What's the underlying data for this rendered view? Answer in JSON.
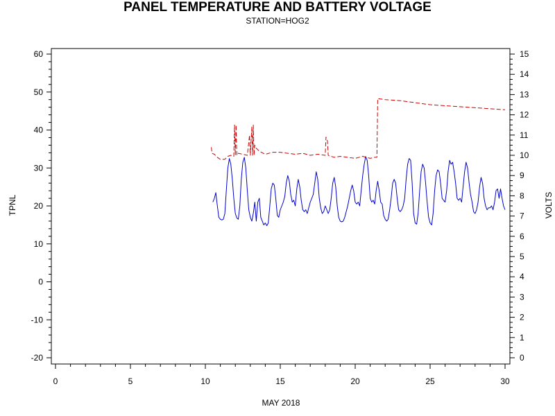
{
  "chart_data": {
    "type": "line",
    "title": "PANEL TEMPERATURE AND BATTERY VOLTAGE",
    "subtitle": "STATION=HOG2",
    "xlabel": "MAY 2018",
    "ylabel_left": "TPNL",
    "ylabel_right": "VOLTS",
    "xlim": [
      0,
      30
    ],
    "x_ticks": [
      0,
      5,
      10,
      15,
      20,
      25,
      30
    ],
    "ylim_left": [
      -20,
      60
    ],
    "y_ticks_left": [
      -20,
      -10,
      0,
      10,
      20,
      30,
      40,
      50,
      60
    ],
    "ylim_right": [
      0,
      15
    ],
    "y_ticks_right": [
      0,
      1,
      2,
      3,
      4,
      5,
      6,
      7,
      8,
      9,
      10,
      11,
      12,
      13,
      14,
      15
    ],
    "series": [
      {
        "axis": "left",
        "color": "#0000cc",
        "style": "solid",
        "points": [
          [
            10.5,
            21
          ],
          [
            10.6,
            22
          ],
          [
            10.7,
            23.5
          ],
          [
            10.8,
            20
          ],
          [
            10.9,
            17
          ],
          [
            11.0,
            16.5
          ],
          [
            11.1,
            16.3
          ],
          [
            11.2,
            16.5
          ],
          [
            11.3,
            18
          ],
          [
            11.4,
            24
          ],
          [
            11.5,
            30
          ],
          [
            11.6,
            32.5
          ],
          [
            11.7,
            31
          ],
          [
            11.8,
            27
          ],
          [
            11.9,
            22
          ],
          [
            12.0,
            18
          ],
          [
            12.1,
            16.8
          ],
          [
            12.2,
            16.5
          ],
          [
            12.3,
            20
          ],
          [
            12.4,
            27
          ],
          [
            12.5,
            31.5
          ],
          [
            12.6,
            32.8
          ],
          [
            12.7,
            30
          ],
          [
            12.8,
            24
          ],
          [
            12.9,
            19
          ],
          [
            13.0,
            17
          ],
          [
            13.1,
            16
          ],
          [
            13.2,
            18
          ],
          [
            13.3,
            21
          ],
          [
            13.4,
            16
          ],
          [
            13.5,
            21
          ],
          [
            13.6,
            22
          ],
          [
            13.7,
            17
          ],
          [
            13.8,
            16
          ],
          [
            13.9,
            15
          ],
          [
            14.0,
            15.5
          ],
          [
            14.1,
            14.8
          ],
          [
            14.2,
            15.5
          ],
          [
            14.3,
            20
          ],
          [
            14.4,
            24.5
          ],
          [
            14.5,
            26
          ],
          [
            14.6,
            25.5
          ],
          [
            14.7,
            22
          ],
          [
            14.8,
            17.5
          ],
          [
            14.9,
            17
          ],
          [
            15.0,
            19
          ],
          [
            15.1,
            20
          ],
          [
            15.2,
            21
          ],
          [
            15.3,
            22.5
          ],
          [
            15.4,
            26
          ],
          [
            15.5,
            28
          ],
          [
            15.6,
            26.5
          ],
          [
            15.7,
            23
          ],
          [
            15.8,
            21
          ],
          [
            15.9,
            21.5
          ],
          [
            16.0,
            20
          ],
          [
            16.1,
            24.5
          ],
          [
            16.2,
            27
          ],
          [
            16.3,
            25
          ],
          [
            16.4,
            21.5
          ],
          [
            16.5,
            19
          ],
          [
            16.6,
            18.5
          ],
          [
            16.7,
            19
          ],
          [
            16.8,
            18
          ],
          [
            16.9,
            19.5
          ],
          [
            17.0,
            21
          ],
          [
            17.1,
            22
          ],
          [
            17.2,
            23
          ],
          [
            17.3,
            26
          ],
          [
            17.4,
            29
          ],
          [
            17.5,
            27
          ],
          [
            17.6,
            22
          ],
          [
            17.7,
            19.5
          ],
          [
            17.8,
            18
          ],
          [
            17.9,
            18.5
          ],
          [
            18.0,
            20
          ],
          [
            18.1,
            19
          ],
          [
            18.2,
            18
          ],
          [
            18.3,
            19
          ],
          [
            18.4,
            22
          ],
          [
            18.5,
            26
          ],
          [
            18.6,
            27.5
          ],
          [
            18.7,
            25
          ],
          [
            18.8,
            20
          ],
          [
            18.9,
            17
          ],
          [
            19.0,
            16
          ],
          [
            19.1,
            15.8
          ],
          [
            19.2,
            16
          ],
          [
            19.3,
            17
          ],
          [
            19.5,
            20
          ],
          [
            19.6,
            22
          ],
          [
            19.7,
            24
          ],
          [
            19.8,
            25.5
          ],
          [
            19.9,
            24
          ],
          [
            20.0,
            21
          ],
          [
            20.1,
            20.5
          ],
          [
            20.2,
            21
          ],
          [
            20.3,
            20
          ],
          [
            20.4,
            24
          ],
          [
            20.5,
            28
          ],
          [
            20.6,
            31
          ],
          [
            20.7,
            33
          ],
          [
            20.8,
            32
          ],
          [
            20.9,
            28
          ],
          [
            21.0,
            22
          ],
          [
            21.1,
            21
          ],
          [
            21.2,
            21.5
          ],
          [
            21.3,
            20.5
          ],
          [
            21.4,
            24
          ],
          [
            21.5,
            26.5
          ],
          [
            21.6,
            24
          ],
          [
            21.7,
            21
          ],
          [
            21.8,
            20.5
          ],
          [
            21.9,
            17.5
          ],
          [
            22.0,
            16.5
          ],
          [
            22.1,
            16
          ],
          [
            22.2,
            16.5
          ],
          [
            22.3,
            19
          ],
          [
            22.4,
            22
          ],
          [
            22.5,
            26
          ],
          [
            22.6,
            27
          ],
          [
            22.7,
            26
          ],
          [
            22.8,
            22
          ],
          [
            22.9,
            19
          ],
          [
            23.0,
            18.5
          ],
          [
            23.1,
            19
          ],
          [
            23.2,
            20
          ],
          [
            23.3,
            22
          ],
          [
            23.4,
            27
          ],
          [
            23.5,
            31
          ],
          [
            23.6,
            32.5
          ],
          [
            23.7,
            32
          ],
          [
            23.8,
            26
          ],
          [
            23.9,
            18
          ],
          [
            24.0,
            15.5
          ],
          [
            24.1,
            15.2
          ],
          [
            24.2,
            18
          ],
          [
            24.3,
            24
          ],
          [
            24.4,
            29
          ],
          [
            24.5,
            31
          ],
          [
            24.6,
            30
          ],
          [
            24.7,
            26
          ],
          [
            24.8,
            21
          ],
          [
            24.9,
            17
          ],
          [
            25.0,
            15.5
          ],
          [
            25.1,
            15
          ],
          [
            25.2,
            18
          ],
          [
            25.3,
            24
          ],
          [
            25.4,
            28
          ],
          [
            25.5,
            29.5
          ],
          [
            25.6,
            29
          ],
          [
            25.7,
            26
          ],
          [
            25.8,
            22
          ],
          [
            25.9,
            21.5
          ],
          [
            26.0,
            21
          ],
          [
            26.1,
            24
          ],
          [
            26.2,
            29
          ],
          [
            26.3,
            32
          ],
          [
            26.4,
            31
          ],
          [
            26.5,
            31.5
          ],
          [
            26.6,
            29
          ],
          [
            26.7,
            26
          ],
          [
            26.8,
            22
          ],
          [
            26.9,
            21.5
          ],
          [
            27.0,
            22
          ],
          [
            27.1,
            21
          ],
          [
            27.2,
            25
          ],
          [
            27.3,
            29
          ],
          [
            27.4,
            31.5
          ],
          [
            27.5,
            30
          ],
          [
            27.6,
            26
          ],
          [
            27.7,
            23
          ],
          [
            27.8,
            21
          ],
          [
            27.9,
            18.5
          ],
          [
            28.0,
            18
          ],
          [
            28.1,
            19
          ],
          [
            28.2,
            21
          ],
          [
            28.3,
            25
          ],
          [
            28.4,
            27.5
          ],
          [
            28.5,
            26
          ],
          [
            28.6,
            22
          ],
          [
            28.7,
            20
          ],
          [
            28.8,
            19
          ],
          [
            28.9,
            19.5
          ],
          [
            29.0,
            19.5
          ],
          [
            29.1,
            20
          ],
          [
            29.2,
            19
          ],
          [
            29.3,
            21
          ],
          [
            29.4,
            24
          ],
          [
            29.5,
            24.5
          ],
          [
            29.6,
            22
          ],
          [
            29.7,
            24.5
          ],
          [
            29.8,
            22
          ],
          [
            29.9,
            20
          ],
          [
            30.0,
            19
          ]
        ]
      },
      {
        "axis": "right",
        "color": "#cc0000",
        "style": "dashed",
        "points": [
          [
            10.4,
            10.4
          ],
          [
            10.45,
            10.1
          ],
          [
            10.6,
            10.05
          ],
          [
            10.8,
            9.9
          ],
          [
            11.0,
            9.8
          ],
          [
            11.3,
            9.8
          ],
          [
            11.5,
            9.95
          ],
          [
            11.7,
            10.0
          ],
          [
            11.9,
            9.95
          ],
          [
            11.95,
            11.5
          ],
          [
            12.0,
            10.0
          ],
          [
            12.05,
            11.5
          ],
          [
            12.1,
            10.0
          ],
          [
            12.2,
            10.1
          ],
          [
            12.5,
            10.05
          ],
          [
            12.8,
            10.0
          ],
          [
            12.95,
            11.0
          ],
          [
            13.0,
            10.0
          ],
          [
            13.1,
            11.4
          ],
          [
            13.15,
            10.0
          ],
          [
            13.2,
            11.5
          ],
          [
            13.25,
            10.0
          ],
          [
            13.3,
            10.5
          ],
          [
            13.4,
            10.35
          ],
          [
            13.6,
            10.2
          ],
          [
            14.0,
            10.05
          ],
          [
            14.5,
            10.15
          ],
          [
            15.0,
            10.15
          ],
          [
            15.5,
            10.1
          ],
          [
            16.0,
            10.05
          ],
          [
            16.5,
            10.1
          ],
          [
            17.0,
            10.0
          ],
          [
            17.5,
            10.05
          ],
          [
            18.0,
            10.0
          ],
          [
            18.05,
            10.9
          ],
          [
            18.15,
            10.7
          ],
          [
            18.2,
            10.0
          ],
          [
            18.4,
            9.95
          ],
          [
            18.6,
            9.9
          ],
          [
            19.0,
            9.95
          ],
          [
            19.5,
            9.9
          ],
          [
            20.0,
            9.85
          ],
          [
            20.5,
            9.95
          ],
          [
            21.0,
            9.85
          ],
          [
            21.3,
            9.9
          ],
          [
            21.45,
            9.9
          ],
          [
            21.5,
            12.8
          ],
          [
            22.0,
            12.75
          ],
          [
            23.0,
            12.7
          ],
          [
            24.0,
            12.6
          ],
          [
            25.0,
            12.5
          ],
          [
            26.0,
            12.45
          ],
          [
            27.0,
            12.4
          ],
          [
            28.0,
            12.35
          ],
          [
            29.0,
            12.3
          ],
          [
            30.0,
            12.25
          ]
        ]
      }
    ],
    "grid": false,
    "legend": "none"
  }
}
